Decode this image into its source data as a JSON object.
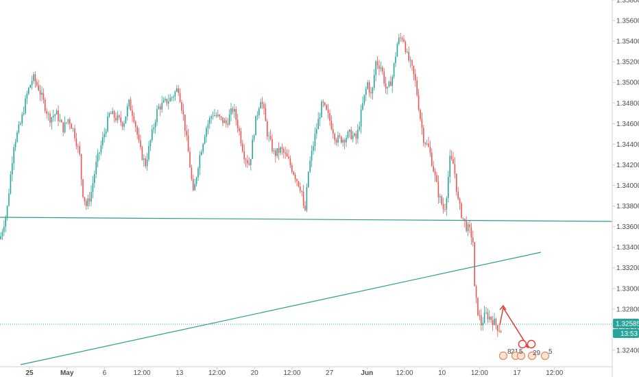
{
  "chart_data": {
    "type": "candlestick",
    "colors": {
      "up": "#26a69a",
      "down": "#ef5350",
      "trendline": "#2a9d8f",
      "current_price_line": "#26a69a",
      "projection_arrow": "#e53935",
      "axis_text": "#4a4a4a"
    },
    "y_axis": {
      "min": 1.3224,
      "max": 1.358,
      "side": "right",
      "ticks": [
        "1.32400",
        "1.32600",
        "1.32800",
        "1.33000",
        "1.33200",
        "1.33400",
        "1.33600",
        "1.33800",
        "1.34000",
        "1.34200",
        "1.34400",
        "1.34600",
        "1.34800",
        "1.35000",
        "1.35200",
        "1.35400",
        "1.35600",
        "1.35800"
      ]
    },
    "x_axis": {
      "ticks": [
        {
          "label": "25",
          "bold": true
        },
        {
          "label": "May",
          "bold": true
        },
        {
          "label": "6",
          "bold": false
        },
        {
          "label": "12:00",
          "bold": false
        },
        {
          "label": "13",
          "bold": false
        },
        {
          "label": "12:00",
          "bold": false
        },
        {
          "label": "20",
          "bold": false
        },
        {
          "label": "12:00",
          "bold": false
        },
        {
          "label": "27",
          "bold": false
        },
        {
          "label": "Jun",
          "bold": true
        },
        {
          "label": "12:00",
          "bold": false
        },
        {
          "label": "10",
          "bold": false
        },
        {
          "label": "12:00",
          "bold": false
        },
        {
          "label": "17",
          "bold": false
        },
        {
          "label": "12:00",
          "bold": false
        }
      ]
    },
    "price_path": [
      [
        0,
        1.3348
      ],
      [
        10,
        1.3375
      ],
      [
        20,
        1.344
      ],
      [
        30,
        1.346
      ],
      [
        40,
        1.349
      ],
      [
        48,
        1.3505
      ],
      [
        56,
        1.3495
      ],
      [
        64,
        1.348
      ],
      [
        72,
        1.3465
      ],
      [
        82,
        1.347
      ],
      [
        92,
        1.3455
      ],
      [
        100,
        1.3465
      ],
      [
        108,
        1.3452
      ],
      [
        116,
        1.343
      ],
      [
        120,
        1.3395
      ],
      [
        126,
        1.338
      ],
      [
        132,
        1.339
      ],
      [
        140,
        1.342
      ],
      [
        150,
        1.3445
      ],
      [
        160,
        1.347
      ],
      [
        170,
        1.3465
      ],
      [
        180,
        1.346
      ],
      [
        188,
        1.348
      ],
      [
        196,
        1.3465
      ],
      [
        204,
        1.3435
      ],
      [
        212,
        1.342
      ],
      [
        220,
        1.3445
      ],
      [
        230,
        1.3475
      ],
      [
        240,
        1.348
      ],
      [
        250,
        1.3485
      ],
      [
        260,
        1.3495
      ],
      [
        268,
        1.3465
      ],
      [
        276,
        1.3425
      ],
      [
        282,
        1.339
      ],
      [
        290,
        1.3425
      ],
      [
        300,
        1.3455
      ],
      [
        310,
        1.347
      ],
      [
        320,
        1.3465
      ],
      [
        330,
        1.346
      ],
      [
        340,
        1.3475
      ],
      [
        348,
        1.3455
      ],
      [
        356,
        1.343
      ],
      [
        364,
        1.342
      ],
      [
        372,
        1.346
      ],
      [
        380,
        1.3485
      ],
      [
        384,
        1.3475
      ],
      [
        390,
        1.345
      ],
      [
        400,
        1.343
      ],
      [
        410,
        1.3435
      ],
      [
        420,
        1.3425
      ],
      [
        430,
        1.341
      ],
      [
        440,
        1.3395
      ],
      [
        444,
        1.3368
      ],
      [
        450,
        1.3415
      ],
      [
        460,
        1.345
      ],
      [
        470,
        1.348
      ],
      [
        480,
        1.3465
      ],
      [
        490,
        1.3445
      ],
      [
        500,
        1.3445
      ],
      [
        510,
        1.345
      ],
      [
        520,
        1.3445
      ],
      [
        528,
        1.3475
      ],
      [
        536,
        1.35
      ],
      [
        542,
        1.3485
      ],
      [
        548,
        1.352
      ],
      [
        556,
        1.3515
      ],
      [
        564,
        1.349
      ],
      [
        572,
        1.3505
      ],
      [
        580,
        1.354
      ],
      [
        588,
        1.3545
      ],
      [
        594,
        1.3525
      ],
      [
        600,
        1.3515
      ],
      [
        606,
        1.35
      ],
      [
        612,
        1.347
      ],
      [
        618,
        1.3445
      ],
      [
        626,
        1.3435
      ],
      [
        634,
        1.341
      ],
      [
        640,
        1.339
      ],
      [
        648,
        1.3375
      ],
      [
        652,
        1.3395
      ],
      [
        656,
        1.3425
      ],
      [
        662,
        1.342
      ],
      [
        668,
        1.3385
      ],
      [
        674,
        1.337
      ],
      [
        680,
        1.336
      ],
      [
        686,
        1.3355
      ],
      [
        690,
        1.3345
      ],
      [
        692,
        1.33
      ],
      [
        696,
        1.328
      ],
      [
        702,
        1.3265
      ],
      [
        708,
        1.3275
      ],
      [
        714,
        1.3272
      ],
      [
        720,
        1.3268
      ],
      [
        726,
        1.3262
      ],
      [
        732,
        1.3258
      ]
    ],
    "annotations": {
      "current_price": "1.32585",
      "countdown": "13:53",
      "event_counts": [
        "8",
        "21",
        "5",
        "29",
        "5"
      ]
    }
  }
}
